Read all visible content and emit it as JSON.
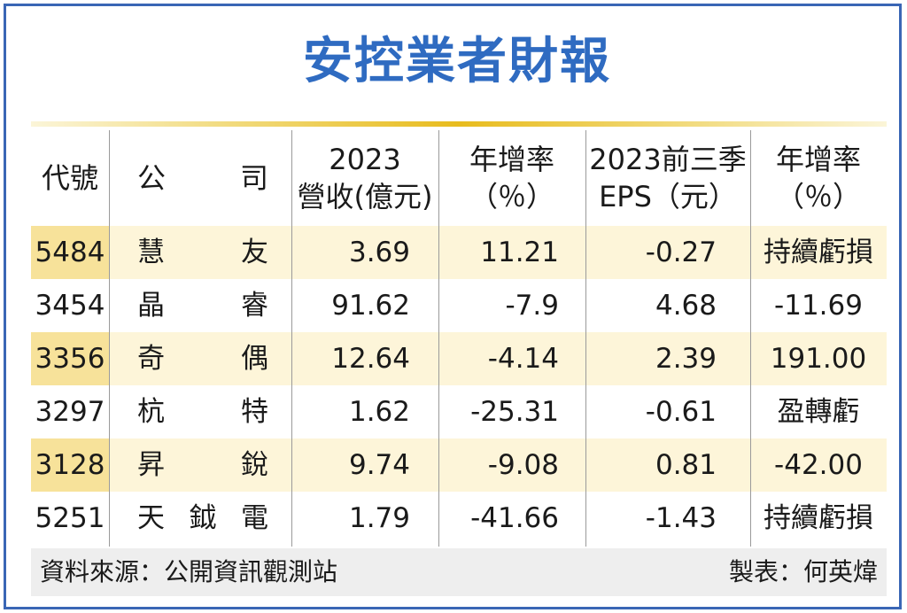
{
  "title": "安控業者財報",
  "columns": [
    {
      "line1": "代號",
      "line2": ""
    },
    {
      "line1": "公",
      "line2": "司"
    },
    {
      "line1": "2023",
      "line2": "營收(億元)"
    },
    {
      "line1": "年增率",
      "line2": "（％）"
    },
    {
      "line1": "2023前三季",
      "line2": "EPS（元）"
    },
    {
      "line1": "年增率",
      "line2": "（％）"
    }
  ],
  "rows": [
    {
      "code": "5484",
      "name": [
        "慧",
        "友"
      ],
      "revenue": "3.69",
      "revenue_yoy": "11.21",
      "eps": "-0.27",
      "eps_yoy": "持續虧損"
    },
    {
      "code": "3454",
      "name": [
        "晶",
        "睿"
      ],
      "revenue": "91.62",
      "revenue_yoy": "-7.9",
      "eps": "4.68",
      "eps_yoy": "-11.69"
    },
    {
      "code": "3356",
      "name": [
        "奇",
        "偶"
      ],
      "revenue": "12.64",
      "revenue_yoy": "-4.14",
      "eps": "2.39",
      "eps_yoy": "191.00"
    },
    {
      "code": "3297",
      "name": [
        "杭",
        "特"
      ],
      "revenue": "1.62",
      "revenue_yoy": "-25.31",
      "eps": "-0.61",
      "eps_yoy": "盈轉虧"
    },
    {
      "code": "3128",
      "name": [
        "昇",
        "銳"
      ],
      "revenue": "9.74",
      "revenue_yoy": "-9.08",
      "eps": "0.81",
      "eps_yoy": "-42.00"
    },
    {
      "code": "5251",
      "name": [
        "天",
        "鉞",
        "電"
      ],
      "revenue": "1.79",
      "revenue_yoy": "-41.66",
      "eps": "-1.43",
      "eps_yoy": "持續虧損"
    }
  ],
  "footer": {
    "source": "資料來源：公開資訊觀測站",
    "maker": "製表：何英煒"
  },
  "colors": {
    "title": "#2f6bc1",
    "frame": "#3a66b5",
    "band_row": "#fdf5d9",
    "band_code": "#f7e29a",
    "rule_gold": "#e8bc1e",
    "footer_bg": "#eeeeee"
  },
  "chart_data": {
    "type": "table",
    "title": "安控業者財報",
    "headers": [
      "代號",
      "公司",
      "2023營收(億元)",
      "年增率（％）",
      "2023前三季EPS（元）",
      "年增率（％）"
    ],
    "rows": [
      [
        "5484",
        "慧友",
        "3.69",
        "11.21",
        "-0.27",
        "持續虧損"
      ],
      [
        "3454",
        "晶睿",
        "91.62",
        "-7.9",
        "4.68",
        "-11.69"
      ],
      [
        "3356",
        "奇偶",
        "12.64",
        "-4.14",
        "2.39",
        "191.00"
      ],
      [
        "3297",
        "杭特",
        "1.62",
        "-25.31",
        "-0.61",
        "盈轉虧"
      ],
      [
        "3128",
        "昇銳",
        "9.74",
        "-9.08",
        "0.81",
        "-42.00"
      ],
      [
        "5251",
        "天鉞電",
        "1.79",
        "-41.66",
        "-1.43",
        "持續虧損"
      ]
    ]
  }
}
